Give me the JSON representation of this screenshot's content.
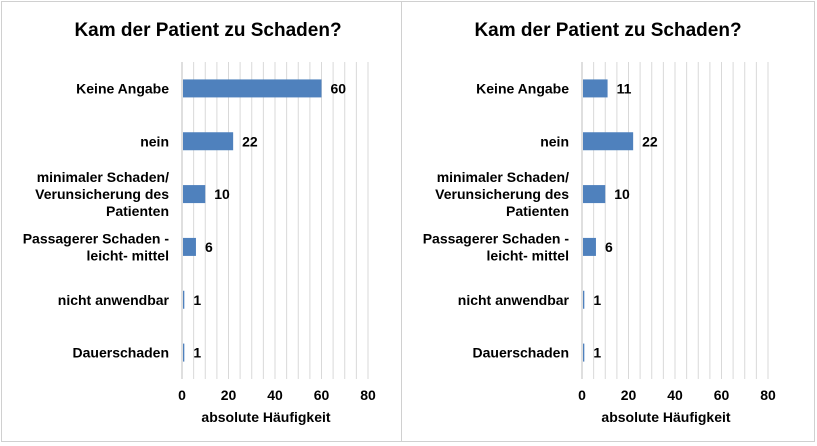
{
  "chart_data": [
    {
      "type": "bar",
      "orientation": "horizontal",
      "title": "Kam der Patient zu Schaden?",
      "xlabel": "absolute Häufigkeit",
      "ylabel": "",
      "categories": [
        "Keine Angabe",
        "nein",
        "minimaler Schaden/ Verunsicherung des Patienten",
        "Passagerer Schaden - leicht- mittel",
        "nicht anwendbar",
        "Dauerschaden"
      ],
      "category_lines": [
        [
          "Keine Angabe"
        ],
        [
          "nein"
        ],
        [
          "minimaler Schaden/",
          "Verunsicherung des",
          "Patienten"
        ],
        [
          "Passagerer Schaden -",
          "leicht- mittel"
        ],
        [
          "nicht anwendbar"
        ],
        [
          "Dauerschaden"
        ]
      ],
      "values": [
        60,
        22,
        10,
        6,
        1,
        1
      ],
      "xlim": [
        0,
        80
      ],
      "xticks": [
        0,
        20,
        40,
        60,
        80
      ],
      "grid": true,
      "legend": "none",
      "bar_color": "#4f81bd",
      "grid_color": "#d9d9d9"
    },
    {
      "type": "bar",
      "orientation": "horizontal",
      "title": "Kam der Patient zu Schaden?",
      "xlabel": "absolute Häufigkeit",
      "ylabel": "",
      "categories": [
        "Keine Angabe",
        "nein",
        "minimaler Schaden/ Verunsicherung des Patienten",
        "Passagerer Schaden - leicht- mittel",
        "nicht anwendbar",
        "Dauerschaden"
      ],
      "category_lines": [
        [
          "Keine Angabe"
        ],
        [
          "nein"
        ],
        [
          "minimaler Schaden/",
          "Verunsicherung des",
          "Patienten"
        ],
        [
          "Passagerer Schaden -",
          "leicht- mittel"
        ],
        [
          "nicht anwendbar"
        ],
        [
          "Dauerschaden"
        ]
      ],
      "values": [
        11,
        22,
        10,
        6,
        1,
        1
      ],
      "xlim": [
        0,
        80
      ],
      "xticks": [
        0,
        20,
        40,
        60,
        80
      ],
      "grid": true,
      "legend": "none",
      "bar_color": "#4f81bd",
      "grid_color": "#d9d9d9"
    }
  ]
}
